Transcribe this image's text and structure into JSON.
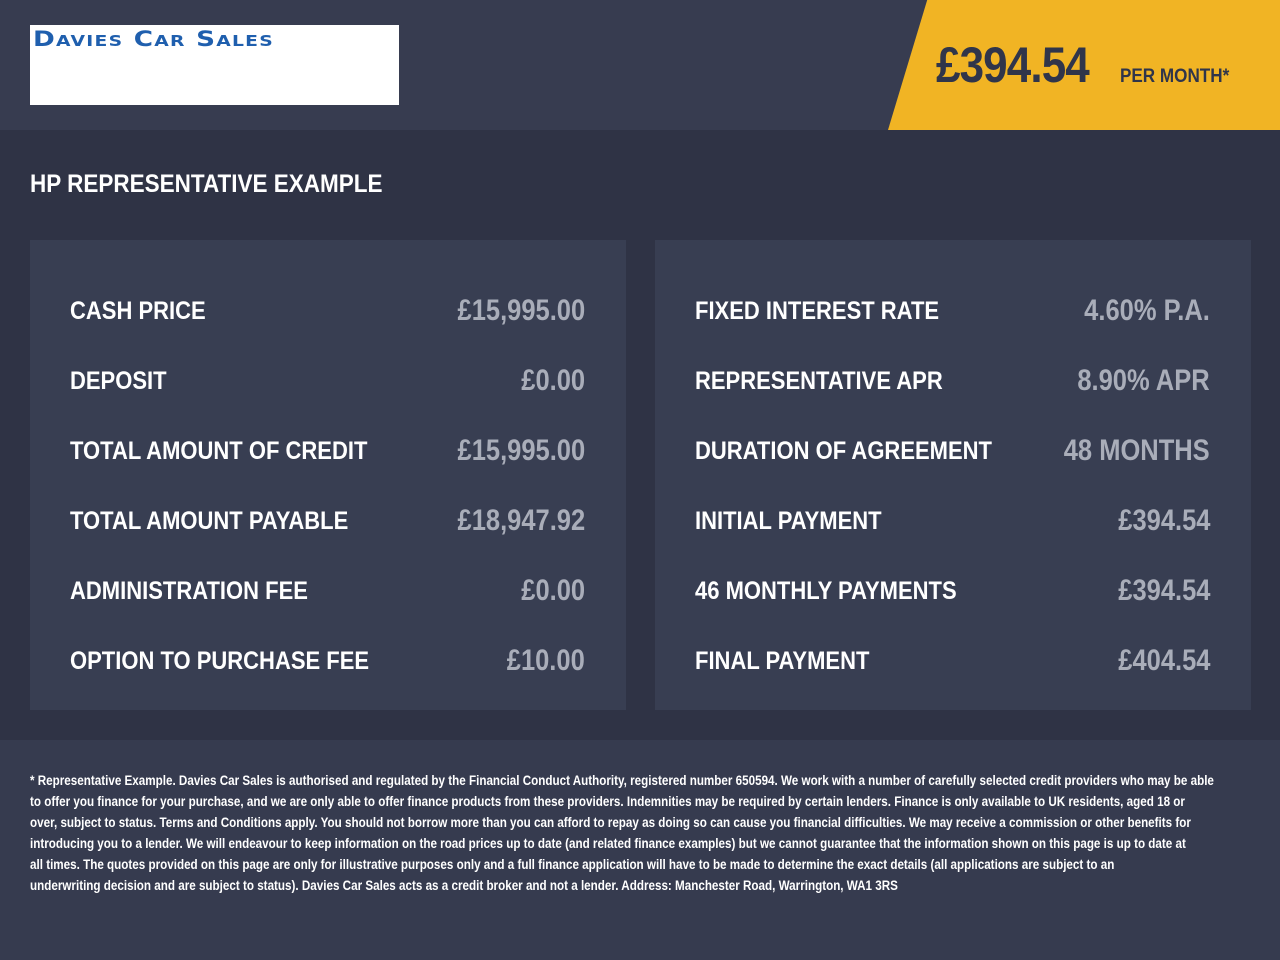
{
  "header": {
    "logo_text": "Davies Car Sales",
    "price": "£394.54",
    "per_month": "PER MONTH*",
    "accent_color": "#f1b424",
    "logo_color": "#1f5fae"
  },
  "section_title": "HP REPRESENTATIVE EXAMPLE",
  "left_panel": [
    {
      "label": "CASH PRICE",
      "value": "£15,995.00"
    },
    {
      "label": "DEPOSIT",
      "value": "£0.00"
    },
    {
      "label": "TOTAL AMOUNT OF CREDIT",
      "value": "£15,995.00"
    },
    {
      "label": "TOTAL AMOUNT PAYABLE",
      "value": "£18,947.92"
    },
    {
      "label": "ADMINISTRATION FEE",
      "value": "£0.00"
    },
    {
      "label": "OPTION TO PURCHASE FEE",
      "value": "£10.00"
    }
  ],
  "right_panel": [
    {
      "label": "FIXED INTEREST RATE",
      "value": "4.60% P.A."
    },
    {
      "label": "REPRESENTATIVE APR",
      "value": "8.90% APR"
    },
    {
      "label": "DURATION OF AGREEMENT",
      "value": "48 MONTHS"
    },
    {
      "label": "INITIAL PAYMENT",
      "value": "£394.54"
    },
    {
      "label": "46 MONTHLY PAYMENTS",
      "value": "£394.54"
    },
    {
      "label": "FINAL PAYMENT",
      "value": "£404.54"
    }
  ],
  "footer": {
    "lines": [
      "* Representative Example. Davies Car Sales  is authorised and regulated by the Financial Conduct Authority, registered number 650594. We work with a number of carefully selected credit providers who may be able",
      "to offer you finance for your purchase, and we are only able to offer finance products from these providers. Indemnities may be required by certain lenders. Finance is only available to UK residents, aged 18 or",
      "over, subject to status. Terms and Conditions apply. You should not borrow more than you can afford to repay as doing so can cause you financial difficulties. We may receive a commission or other benefits for",
      "introducing you to a lender. We will endeavour to keep information on the road prices up to date (and related finance examples) but we cannot guarantee that the information shown on this page is up to date at",
      "all times. The quotes provided on this page are only for illustrative purposes only and a full finance application will have to be made to determine the exact details (all applications are subject to an",
      "underwriting decision and are subject to status). Davies Car Sales  acts as a credit broker and not a lender. Address: Manchester Road, Warrington, WA1 3RS"
    ]
  }
}
